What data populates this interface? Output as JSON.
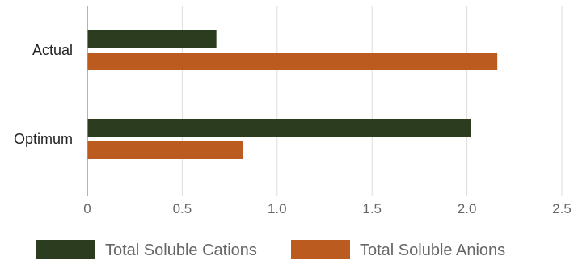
{
  "chart_data": {
    "type": "bar",
    "orientation": "horizontal",
    "categories": [
      "Actual",
      "Optimum"
    ],
    "series": [
      {
        "name": "Total Soluble Cations",
        "values": [
          0.68,
          2.02
        ],
        "color": "#2b3d1e"
      },
      {
        "name": "Total Soluble Anions",
        "values": [
          2.16,
          0.82
        ],
        "color": "#bc5b1f"
      }
    ],
    "x_ticks": [
      "0",
      "0.5",
      "1.0",
      "1.5",
      "2.0",
      "2.5"
    ],
    "xlim": [
      0,
      2.5
    ],
    "title": "",
    "xlabel": "",
    "ylabel": "",
    "grid": true,
    "legend_position": "bottom"
  }
}
